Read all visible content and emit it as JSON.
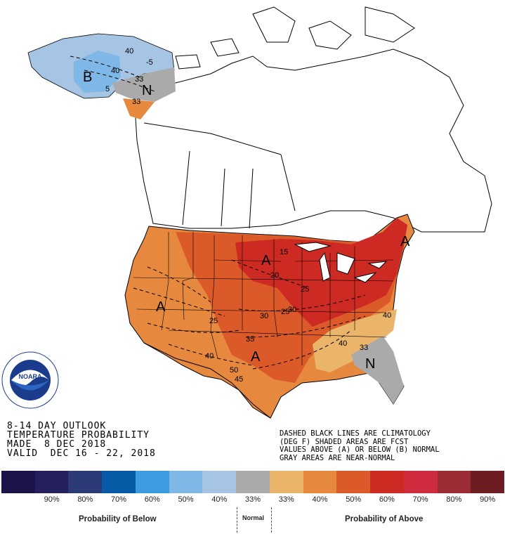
{
  "title_lines": [
    "8-14 DAY OUTLOOK",
    "TEMPERATURE PROBABILITY",
    "MADE  8 DEC 2018",
    "VALID  DEC 16 - 22, 2018"
  ],
  "notes_lines": [
    "DASHED BLACK LINES ARE CLIMATOLOGY",
    "(DEG F) SHADED AREAS ARE FCST",
    "VALUES ABOVE (A) OR BELOW (B) NORMAL",
    "GRAY AREAS ARE NEAR-NORMAL"
  ],
  "logo": {
    "text": "NOARA",
    "ring_text": "NATIONAL OCEANIC AND ATMOSPHERIC ADMINISTRATION · U.S. DEPARTMENT OF COMMERCE"
  },
  "map_labels": {
    "alaska_b": "B",
    "alaska_n": "N",
    "west_a": "A",
    "plains_a": "A",
    "midwest_a": "A",
    "northeast_a": "A",
    "southeast_n": "N",
    "alaska_iso": [
      "40",
      "-5",
      "40",
      "5",
      "33",
      "33"
    ],
    "conus_iso": [
      "15",
      "20",
      "25",
      "30",
      "30",
      "35",
      "25",
      "40",
      "50",
      "45",
      "40",
      "33",
      "40",
      "25"
    ]
  },
  "legend": {
    "colors": [
      "#1c1349",
      "#261f5e",
      "#2d3a78",
      "#065aa6",
      "#3d9be0",
      "#7fb7e6",
      "#a6c4e3",
      "#aaaaaa",
      "#eab46a",
      "#e6883e",
      "#dc5a2a",
      "#cc2a22",
      "#cf2d3f",
      "#9b2b35",
      "#6e1c24"
    ],
    "labels": [
      "90%",
      "80%",
      "70%",
      "60%",
      "50%",
      "40%",
      "33%",
      "33%",
      "40%",
      "50%",
      "60%",
      "70%",
      "80%",
      "90%"
    ],
    "below_caption": "Probability of Below",
    "normal_caption": "Normal",
    "above_caption": "Probability of Above"
  },
  "category_colors": {
    "below_40": "#a6c4e3",
    "below_50": "#7fb7e6",
    "near_normal": "#aaaaaa",
    "above_33": "#eab46a",
    "above_40": "#e6883e",
    "above_50": "#dc5a2a",
    "above_60": "#cc2a22"
  }
}
